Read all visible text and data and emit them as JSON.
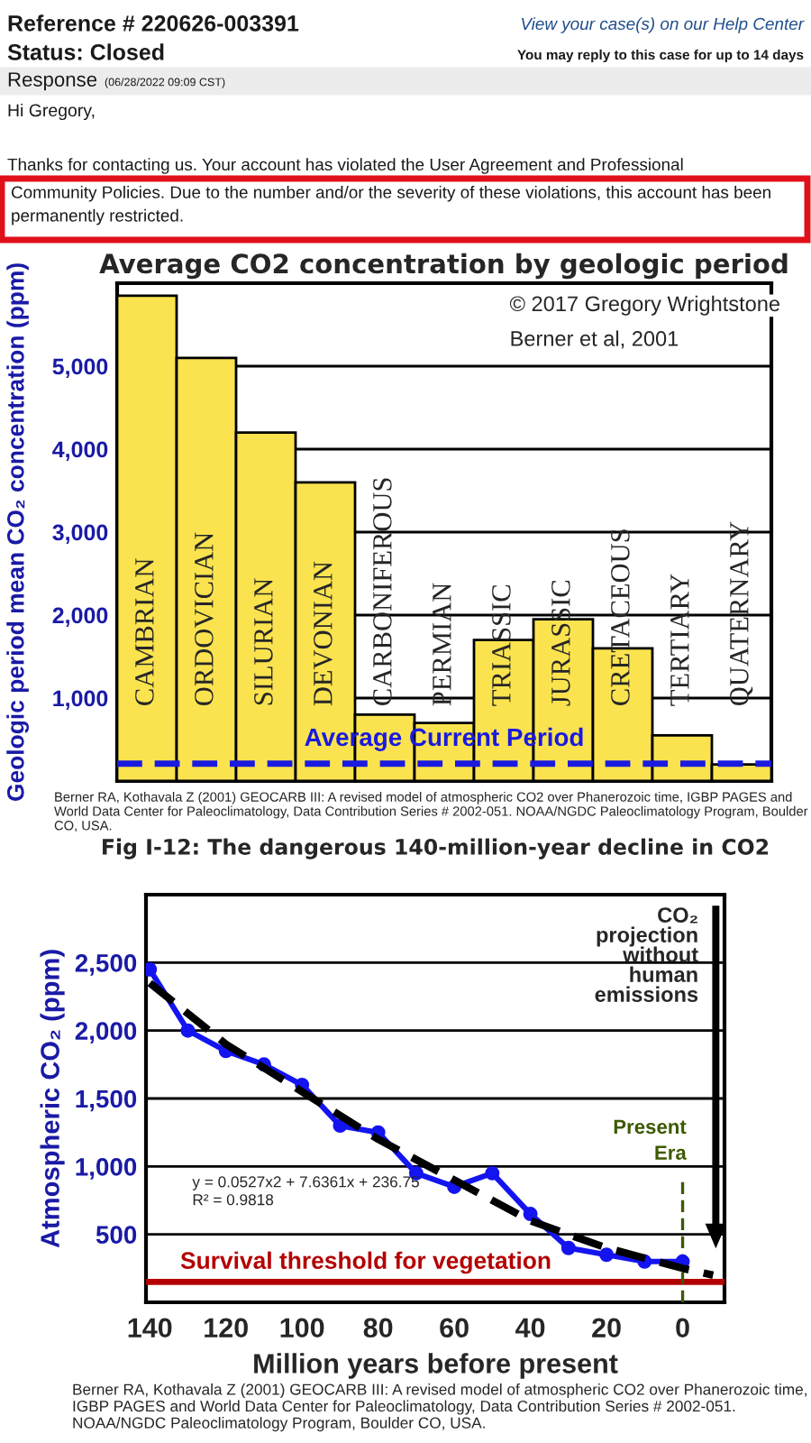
{
  "chart_data": [
    {
      "type": "other",
      "annotations": [
        "Reference # 220626-003391",
        "View your case(s) on our Help Center",
        "Status: Closed",
        "You may reply to this case for up to 14 days",
        "Response",
        "(06/28/2022 09:09 CST)",
        "Hi Gregory,",
        "Thanks for contacting us. Your account has violated the User Agreement and Professional",
        "Community Policies. Due to the number and/or the severity of these violations, this account has been permanently restricted."
      ]
    },
    {
      "type": "bar",
      "title": "Average CO2 concentration by geologic period",
      "ylabel": "Geologic period mean CO₂ concentration (ppm)",
      "categories": [
        "CAMBRIAN",
        "ORDOVICIAN",
        "SILURIAN",
        "DEVONIAN",
        "CARBONIFEROUS",
        "PERMIAN",
        "TRIASSIC",
        "JURASSIC",
        "CRETACEOUS",
        "TERTIARY",
        "QUATERNARY"
      ],
      "values": [
        5850,
        5100,
        4200,
        3600,
        800,
        700,
        1700,
        1950,
        1600,
        550,
        200
      ],
      "color": "#fae34f",
      "ylim": [
        0,
        6000
      ],
      "yticks": [
        {
          "value": 1000,
          "label": "1,000"
        },
        {
          "value": 2000,
          "label": "2,000"
        },
        {
          "value": 3000,
          "label": "3,000"
        },
        {
          "value": 4000,
          "label": "4,000"
        },
        {
          "value": 5000,
          "label": "5,000"
        }
      ],
      "grid": "y",
      "tick_labels": "y",
      "ref_lines": [
        {
          "axis": "y",
          "value": 210,
          "label": "Average Current Period",
          "color": "#1a1ae0",
          "line_style": "dashed"
        }
      ],
      "annotations": [
        "© 2017 Gregory Wrightstone",
        "Berner et al, 2001",
        "Berner RA, Kothavala Z (2001) GEOCARB III: A revised model of atmospheric CO2 over Phanerozoic time, IGBP PAGES and World Data Center for Paleoclimatology, Data Contribution Series # 2002-051. NOAA/NGDC Paleoclimatology Program, Boulder CO, USA."
      ]
    },
    {
      "type": "line",
      "title": "Fig I-12: The dangerous 140-million-year decline in CO2",
      "xlabel": "Million years before present",
      "ylabel": "Atmospheric CO₂ (ppm)",
      "series": [
        {
          "color": "#1414f0",
          "marker": "circle",
          "line_style": "solid",
          "x": [
            140,
            130,
            120,
            110,
            100,
            90,
            80,
            70,
            60,
            50,
            40,
            30,
            20,
            10,
            0
          ],
          "values": [
            2450,
            2000,
            1850,
            1750,
            1600,
            1300,
            1250,
            950,
            850,
            950,
            650,
            400,
            350,
            300,
            300
          ]
        },
        {
          "color": "#000000",
          "marker": "none",
          "line_style": "dashed",
          "x": [
            140,
            120,
            100,
            80,
            60,
            40,
            20,
            0,
            -8
          ],
          "values": [
            2350,
            1900,
            1550,
            1200,
            900,
            600,
            400,
            250,
            200
          ]
        }
      ],
      "xlim": [
        141,
        -11
      ],
      "xticks": [
        140,
        120,
        100,
        80,
        60,
        40,
        20,
        0
      ],
      "ylim": [
        0,
        3000
      ],
      "yticks": [
        500,
        {
          "value": 1000,
          "label": "1,000"
        },
        {
          "value": 1500,
          "label": "1,500"
        },
        {
          "value": 2000,
          "label": "2,000"
        },
        {
          "value": 2500,
          "label": "2,500"
        }
      ],
      "grid": "y",
      "ref_lines": [
        {
          "axis": "y",
          "value": 150,
          "label": "Survival threshold for vegetation",
          "color": "#b40000",
          "line_style": "solid"
        },
        {
          "axis": "x",
          "value": 0,
          "label": "Present Era",
          "color": "#3c5a00",
          "line_style": "dashed"
        }
      ],
      "annotations": [
        "y = 0.0527x2 + 7.6361x + 236.75\nR² = 0.9818",
        "CO₂\nprojection\nwithout\nhuman\nemissions",
        "Berner RA, Kothavala Z (2001) GEOCARB III: A revised model of atmospheric CO2 over Phanerozoic time, IGBP PAGES and World Data Center for Paleoclimatology, Data Contribution Series # 2002-051. NOAA/NGDC Paleoclimatology Program, Boulder CO, USA."
      ]
    }
  ]
}
